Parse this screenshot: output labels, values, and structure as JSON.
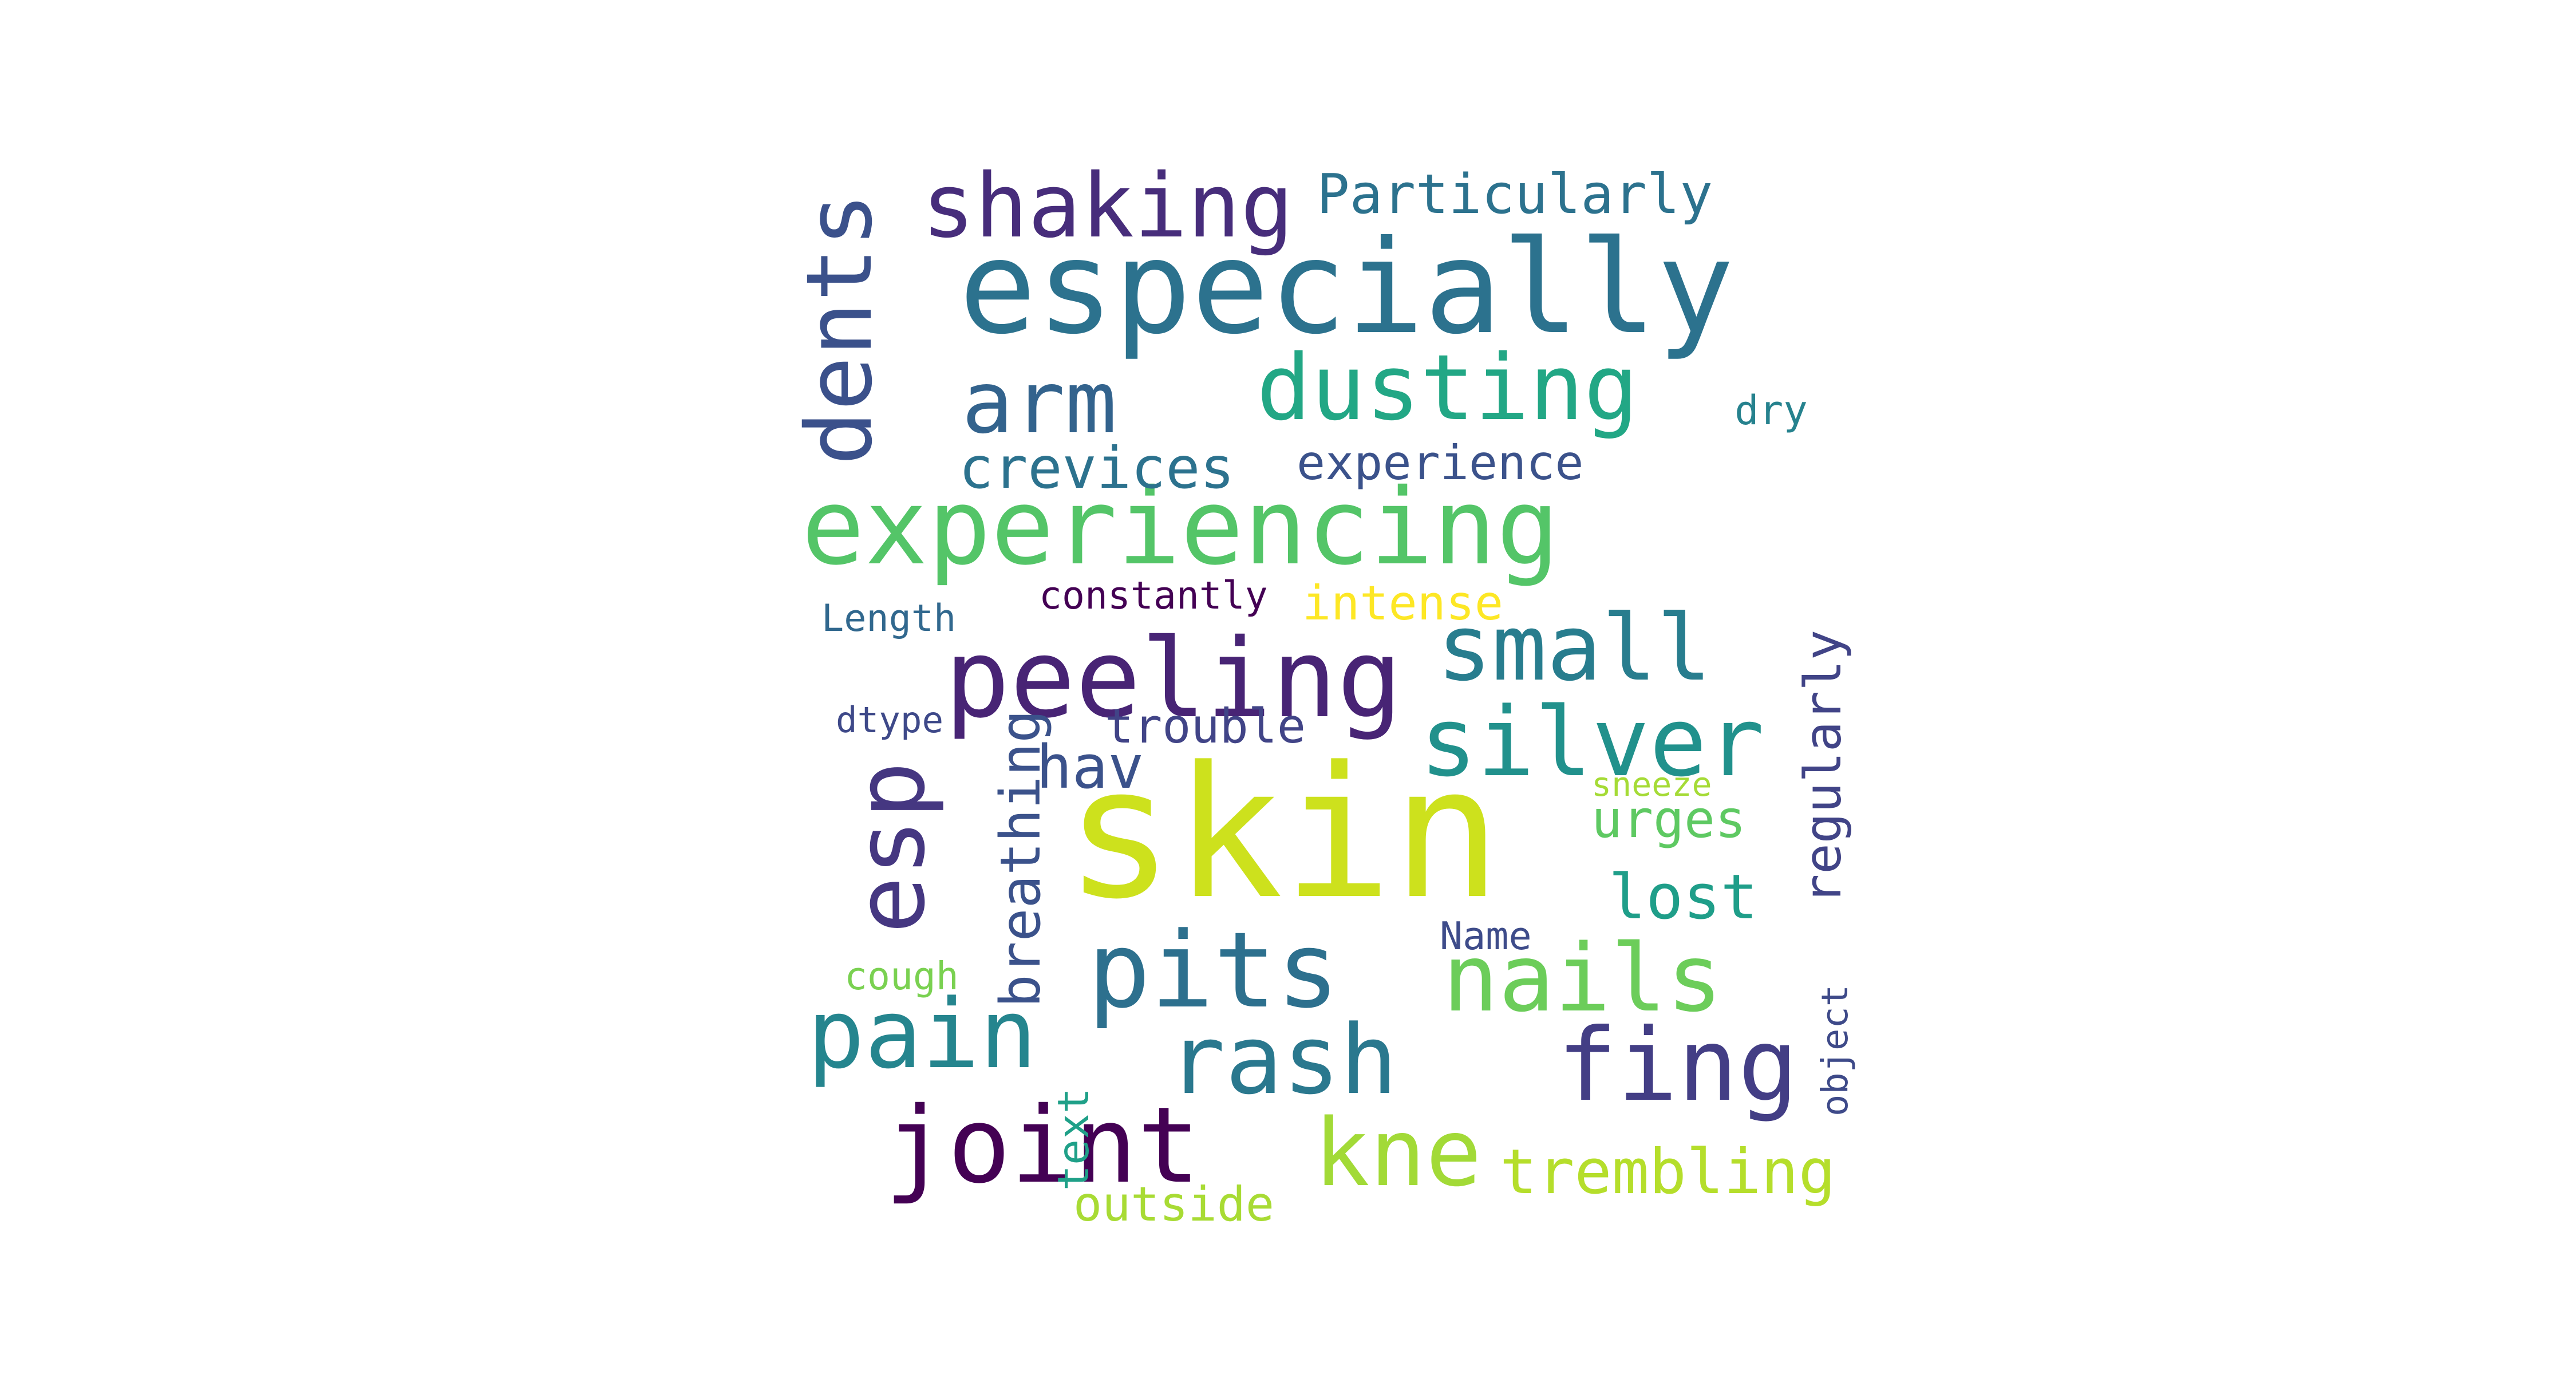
{
  "words": [
    {
      "text": "skin",
      "color": "#cde11d",
      "vertical": false
    },
    {
      "text": "experiencing",
      "color": "#54c568",
      "vertical": false
    },
    {
      "text": "especially",
      "color": "#2c728e",
      "vertical": false
    },
    {
      "text": "dents",
      "color": "#3b518b",
      "vertical": true
    },
    {
      "text": "shaking",
      "color": "#472d7b",
      "vertical": false
    },
    {
      "text": "Particularly",
      "color": "#2c728e",
      "vertical": false
    },
    {
      "text": "arm",
      "color": "#33638d",
      "vertical": false
    },
    {
      "text": "dusting",
      "color": "#22a785",
      "vertical": false
    },
    {
      "text": "dry",
      "color": "#26828e",
      "vertical": false
    },
    {
      "text": "crevices",
      "color": "#2c728e",
      "vertical": false
    },
    {
      "text": "experience",
      "color": "#3b528b",
      "vertical": false
    },
    {
      "text": "constantly",
      "color": "#440154",
      "vertical": false
    },
    {
      "text": "intense",
      "color": "#fde725",
      "vertical": false
    },
    {
      "text": "Length",
      "color": "#31688e",
      "vertical": false
    },
    {
      "text": "peeling",
      "color": "#482475",
      "vertical": false
    },
    {
      "text": "small",
      "color": "#287d8e",
      "vertical": false
    },
    {
      "text": "silver",
      "color": "#21918c",
      "vertical": false
    },
    {
      "text": "regularly",
      "color": "#414487",
      "vertical": true
    },
    {
      "text": "dtype",
      "color": "#3e4989",
      "vertical": false
    },
    {
      "text": "trouble",
      "color": "#414487",
      "vertical": false
    },
    {
      "text": "hav",
      "color": "#3b528b",
      "vertical": false
    },
    {
      "text": "breathing",
      "color": "#3b528b",
      "vertical": true
    },
    {
      "text": "esp",
      "color": "#453781",
      "vertical": true
    },
    {
      "text": "sneeze",
      "color": "#a5db36",
      "vertical": false
    },
    {
      "text": "urges",
      "color": "#5ec962",
      "vertical": false
    },
    {
      "text": "lost",
      "color": "#1f9e89",
      "vertical": false
    },
    {
      "text": "Name",
      "color": "#3e4c8a",
      "vertical": false
    },
    {
      "text": "pits",
      "color": "#2d708e",
      "vertical": false
    },
    {
      "text": "nails",
      "color": "#6ccd5a",
      "vertical": false
    },
    {
      "text": "cough",
      "color": "#7ad151",
      "vertical": false
    },
    {
      "text": "pain",
      "color": "#25858e",
      "vertical": false
    },
    {
      "text": "rash",
      "color": "#2a788e",
      "vertical": false
    },
    {
      "text": "fing",
      "color": "#433e85",
      "vertical": false
    },
    {
      "text": "object",
      "color": "#3e4a89",
      "vertical": true
    },
    {
      "text": "joint",
      "color": "#440154",
      "vertical": false
    },
    {
      "text": "text",
      "color": "#1fa088",
      "vertical": true
    },
    {
      "text": "kne",
      "color": "#a2da37",
      "vertical": false
    },
    {
      "text": "trembling",
      "color": "#b5de2b",
      "vertical": false
    },
    {
      "text": "outside",
      "color": "#a8db34",
      "vertical": false
    }
  ]
}
